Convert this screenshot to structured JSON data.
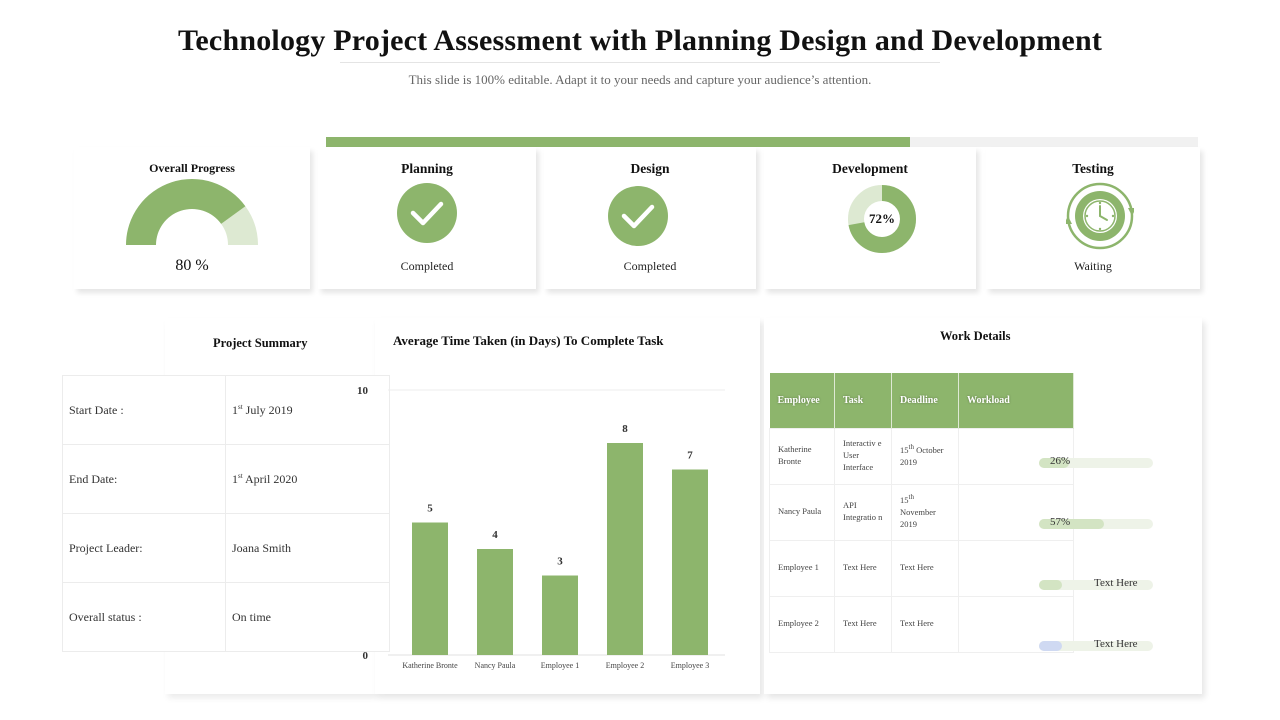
{
  "header": {
    "title": "Technology Project Assessment with Planning Design and Development",
    "subtitle": "This slide is 100% editable. Adapt it to your needs and capture your audience’s attention."
  },
  "top_progress_fraction": 0.67,
  "colors": {
    "accent": "#8db56c",
    "accent_light": "#dde9d2",
    "track": "#f1f1f1",
    "pending_blue": "#cfd9f2"
  },
  "stages": {
    "overall": {
      "title": "Overall Progress",
      "value_label": "80 %",
      "value_fraction": 0.8
    },
    "planning": {
      "title": "Planning",
      "status": "Completed",
      "icon": "check-icon"
    },
    "design": {
      "title": "Design",
      "status": "Completed",
      "icon": "check-icon"
    },
    "development": {
      "title": "Development",
      "value_label": "72%",
      "value_fraction": 0.72
    },
    "testing": {
      "title": "Testing",
      "status": "Waiting",
      "icon": "clock-icon"
    }
  },
  "summary": {
    "title": "Project Summary",
    "rows": [
      {
        "key": "Start Date  :",
        "day": "1",
        "sup": "st",
        "rest": " July 2019"
      },
      {
        "key": "End Date:",
        "day": "1",
        "sup": "st",
        "rest": " April 2020"
      },
      {
        "key": "Project  Leader:",
        "value": "Joana Smith"
      },
      {
        "key": "Overall  status :",
        "value": "On time"
      }
    ]
  },
  "chart_data": {
    "type": "bar",
    "title": "Average Time Taken (in Days) To Complete Task",
    "categories": [
      "Katherine Bronte",
      "Nancy Paula",
      "Employee 1",
      "Employee 2",
      "Employee 3"
    ],
    "values": [
      5,
      4,
      3,
      8,
      7
    ],
    "ylim": [
      0,
      10
    ],
    "y_ticks": [
      "10",
      "0"
    ],
    "xlabel": "",
    "ylabel": "",
    "grid": false,
    "bar_color": "#8db56c"
  },
  "work": {
    "title": "Work Details",
    "headers": [
      "Employee",
      "Task",
      "Deadline",
      "Workload"
    ],
    "rows": [
      {
        "employee": "Katherine Bronte",
        "task": "Interactiv e User Interface",
        "deadline_day": "15",
        "deadline_sup": "th",
        "deadline_rest": " October 2019",
        "workload_label": "26%",
        "workload_fraction": 0.26
      },
      {
        "employee": "Nancy Paula",
        "task": "API Integratio n",
        "deadline_day": "15",
        "deadline_sup": "th",
        "deadline_rest": " November 2019",
        "workload_label": "57%",
        "workload_fraction": 0.57
      },
      {
        "employee": "Employee 1",
        "task": "Text Here",
        "deadline": "Text Here",
        "workload_label": "Text Here",
        "workload_fraction": 0.2
      },
      {
        "employee": "Employee 2",
        "task": "Text Here",
        "deadline": "Text Here",
        "workload_label": "Text Here",
        "workload_fraction": 0.2
      }
    ]
  }
}
